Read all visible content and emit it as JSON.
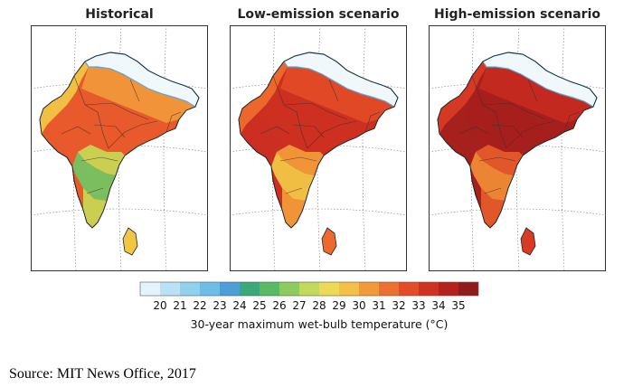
{
  "panels": [
    {
      "title": "Historical",
      "palette": [
        "#f0f8fc",
        "#9fd48a",
        "#74c463",
        "#c9d653",
        "#f1c645",
        "#f0973a",
        "#e85a2b"
      ]
    },
    {
      "title": "Low-emission scenario",
      "palette": [
        "#f0f8fc",
        "#d8d84f",
        "#f1c645",
        "#f29a3a",
        "#ec6a2d",
        "#e24a26",
        "#cc2f22"
      ]
    },
    {
      "title": "High-emission scenario",
      "palette": [
        "#f0f8fc",
        "#f1c645",
        "#ee8a35",
        "#e45b2a",
        "#d83b24",
        "#c42a20",
        "#a6201d"
      ]
    }
  ],
  "colorbar": {
    "ticks": [
      "20",
      "21",
      "22",
      "23",
      "24",
      "25",
      "26",
      "27",
      "28",
      "29",
      "30",
      "31",
      "32",
      "33",
      "34",
      "35"
    ],
    "colors": [
      "#e3f4fb",
      "#b9e3f5",
      "#92d1ee",
      "#6fbde6",
      "#4c9fd6",
      "#3ba77a",
      "#59b965",
      "#8dcb61",
      "#c3d95d",
      "#ecd957",
      "#f4c049",
      "#f19a3c",
      "#ec7130",
      "#e24d27",
      "#cf3222",
      "#b3221d",
      "#8f1b1a"
    ],
    "label": "30-year maximum wet-bulb temperature (°C)"
  },
  "source": "Source: MIT News Office, 2017"
}
